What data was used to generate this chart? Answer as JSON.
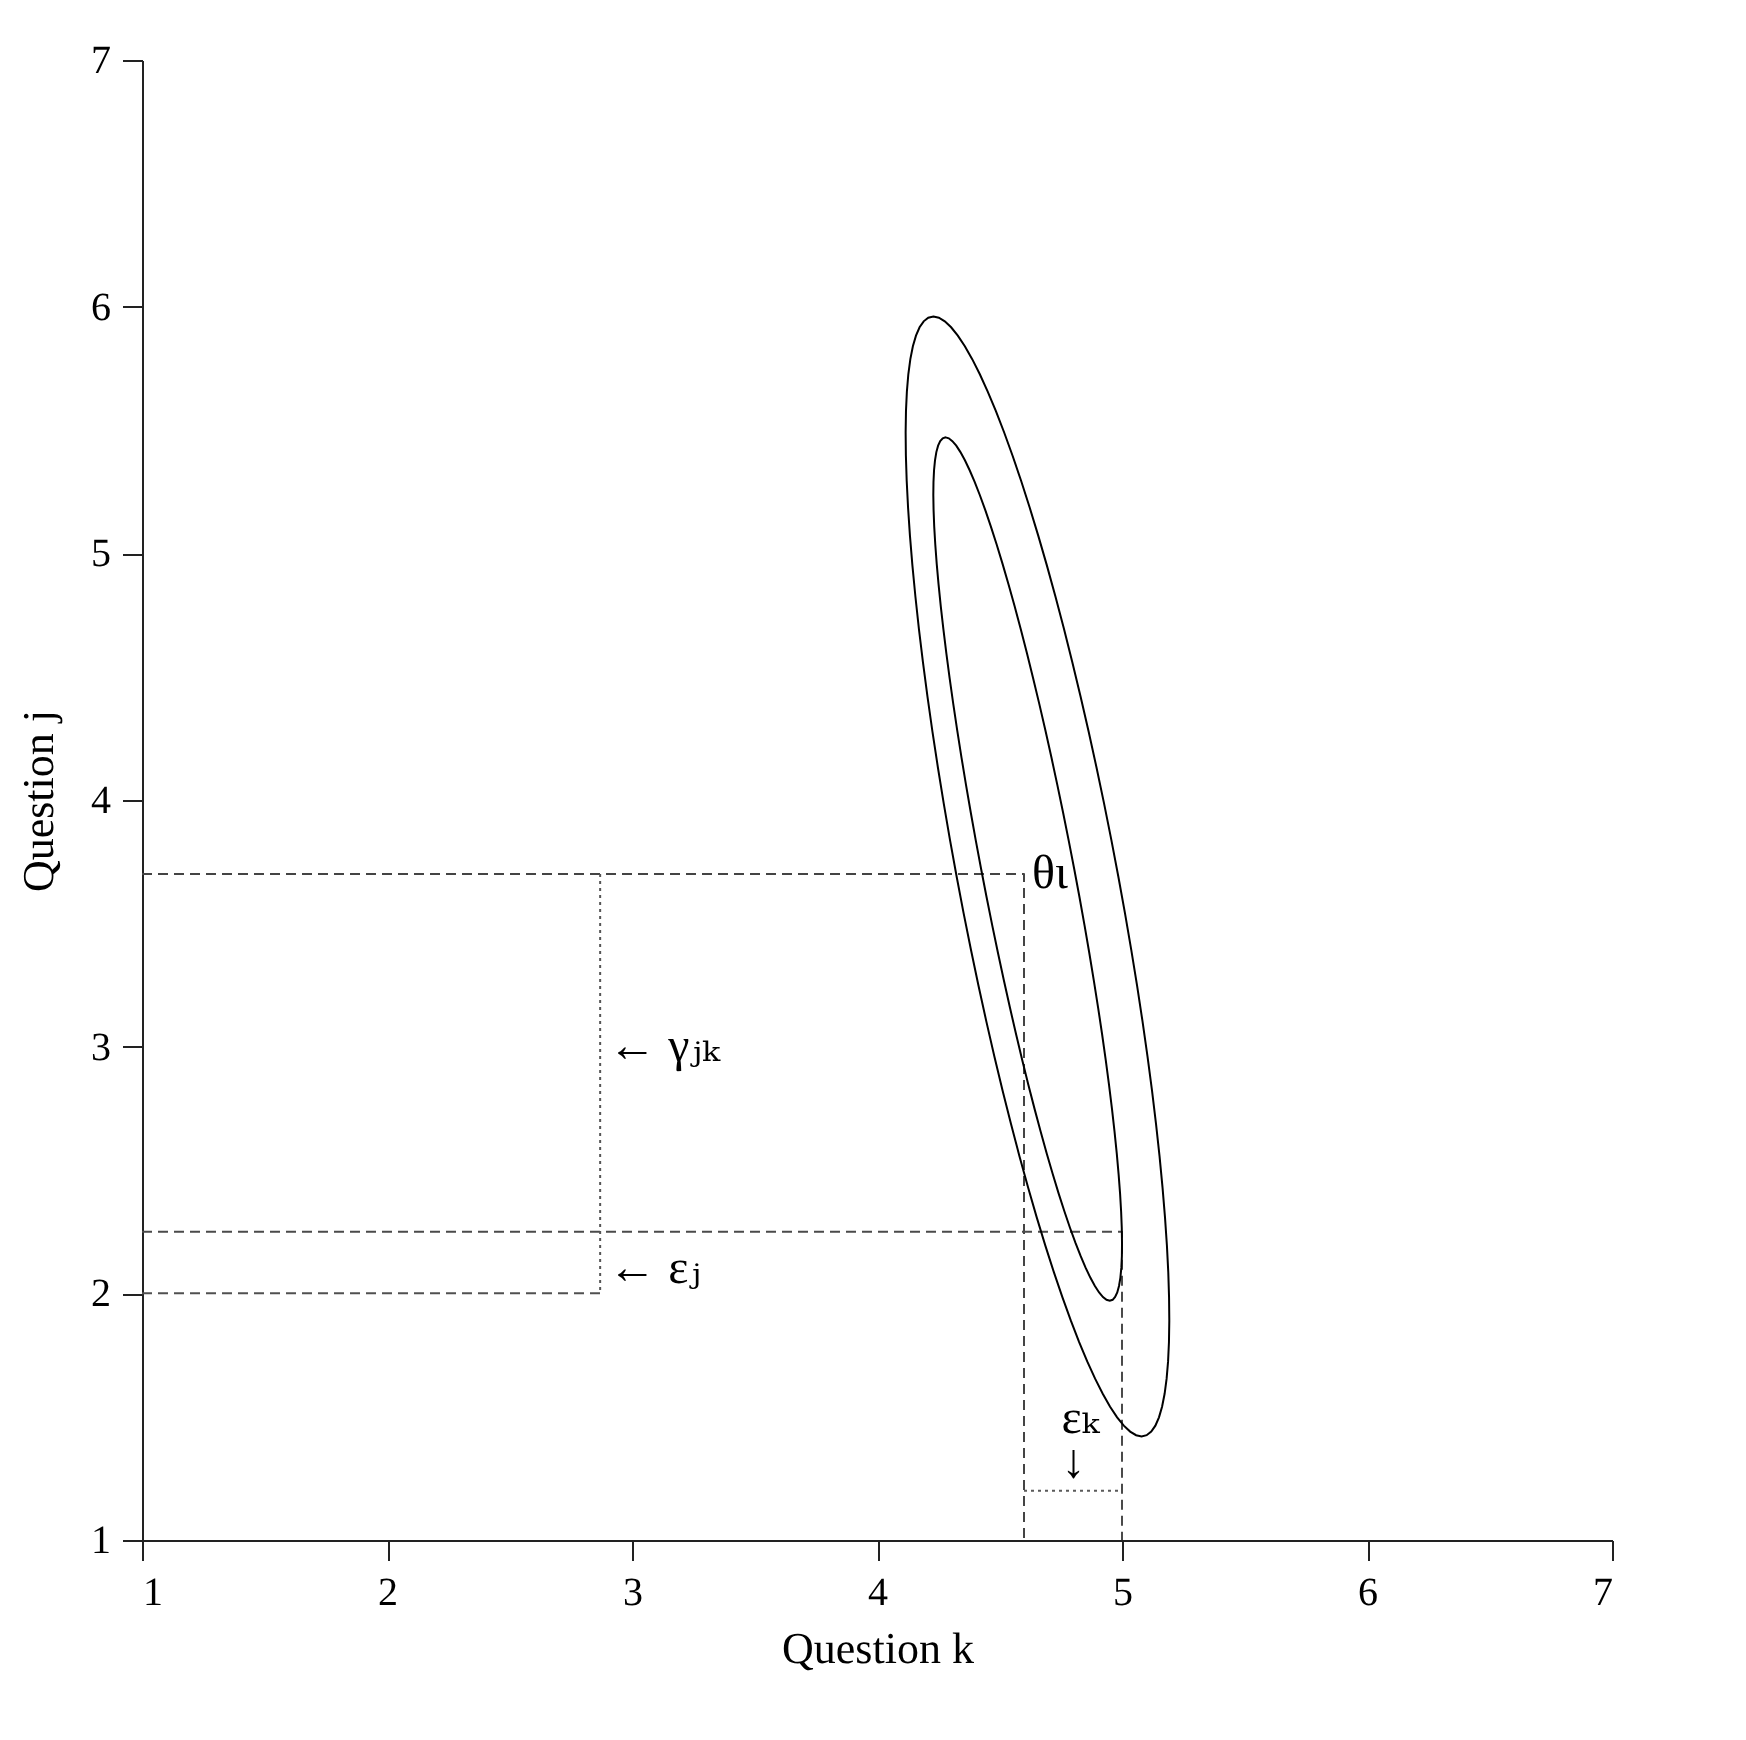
{
  "chart_data": {
    "type": "line",
    "xlabel": "Question k",
    "ylabel": "Question j",
    "xlim": [
      1,
      7
    ],
    "ylim": [
      1,
      7
    ],
    "xticks": [
      1,
      2,
      3,
      4,
      5,
      6,
      7
    ],
    "yticks": [
      1,
      2,
      3,
      4,
      5,
      6,
      7
    ],
    "grid": false,
    "series": [
      {
        "color": "#444444",
        "line_style": "dashed",
        "x": [
          1,
          4.6,
          4.6
        ],
        "values": [
          3.7,
          3.7,
          1
        ]
      },
      {
        "color": "#4a4a4a",
        "line_style": "dashed",
        "x": [
          1,
          5.0,
          5.0
        ],
        "values": [
          2.25,
          2.25,
          1
        ]
      },
      {
        "color": "#555555",
        "line_style": "dotted",
        "x": [
          2.87,
          2.87
        ],
        "values": [
          3.7,
          2.0
        ]
      },
      {
        "color": "#505050",
        "line_style": "dashed",
        "x": [
          1,
          2.87
        ],
        "values": [
          2.0,
          2.0
        ]
      },
      {
        "color": "#5a5a5a",
        "line_style": "dotted",
        "x": [
          4.6,
          5.0
        ],
        "values": [
          1.2,
          1.2
        ]
      }
    ],
    "annotations": [
      {
        "text": "θι",
        "x": 4.6,
        "y": 3.7
      },
      {
        "text": "← γⱼₖ",
        "x": 2.87,
        "y": 3.0
      },
      {
        "text": "← εⱼ",
        "x": 2.87,
        "y": 2.1
      },
      {
        "text": "εₖ",
        "x": 4.72,
        "y": 1.2
      },
      {
        "text": "↓",
        "x": 4.72,
        "y": 1.2
      }
    ]
  }
}
